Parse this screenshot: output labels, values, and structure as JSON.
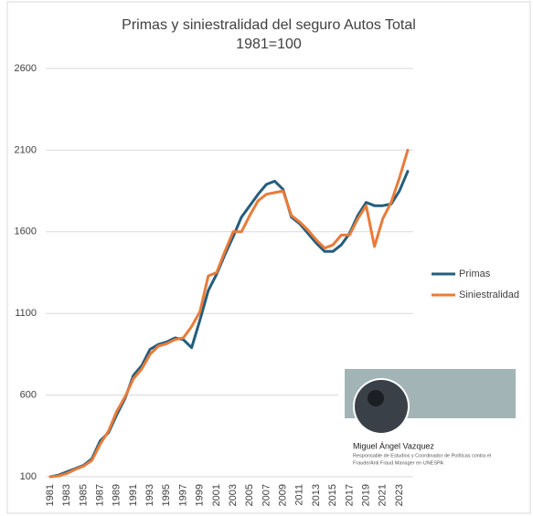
{
  "chart_data": {
    "type": "line",
    "title": "Primas y siniestralidad del seguro Autos Total",
    "subtitle": "1981=100",
    "categories": [
      "1981",
      null,
      "1983",
      null,
      "1985",
      null,
      "1987",
      null,
      "1989",
      null,
      "1991",
      null,
      "1993",
      null,
      "1995",
      null,
      "1997",
      null,
      "1999",
      null,
      "2001",
      null,
      "2003",
      null,
      "2005",
      null,
      "2007",
      null,
      "2009",
      null,
      "2011",
      null,
      "2013",
      null,
      "2015",
      null,
      "2017",
      null,
      "2019",
      null,
      "2021",
      null,
      "2023",
      null
    ],
    "series": [
      {
        "name": "Primas",
        "color": "#245e7c",
        "values": [
          100,
          110,
          130,
          150,
          170,
          210,
          320,
          370,
          480,
          580,
          720,
          780,
          880,
          910,
          925,
          950,
          940,
          890,
          1060,
          1240,
          1340,
          1460,
          1570,
          1690,
          1760,
          1830,
          1890,
          1910,
          1860,
          1690,
          1650,
          1590,
          1530,
          1480,
          1480,
          1520,
          1590,
          1700,
          1780,
          1760,
          1760,
          1770,
          1850,
          1970
        ]
      },
      {
        "name": "Siniestralidad",
        "color": "#e97b3a",
        "values": [
          100,
          105,
          120,
          145,
          165,
          200,
          300,
          380,
          500,
          590,
          700,
          760,
          850,
          900,
          915,
          940,
          950,
          1020,
          1110,
          1330,
          1350,
          1480,
          1600,
          1600,
          1700,
          1790,
          1830,
          1840,
          1850,
          1700,
          1660,
          1610,
          1550,
          1500,
          1520,
          1580,
          1580,
          1680,
          1760,
          1510,
          1680,
          1780,
          1930,
          2100
        ]
      }
    ],
    "ylim": [
      100,
      2600
    ],
    "yticks": [
      100,
      600,
      1100,
      1600,
      2100,
      2600
    ],
    "grid": true,
    "legend": "right"
  },
  "overlay": {
    "name": "Miguel Ángel Vazquez",
    "headline": [
      "Responsable de Estudios y Coordinador de Políticas contra el",
      "Fraude/Anti Fraud Manager en UNESPA"
    ]
  }
}
